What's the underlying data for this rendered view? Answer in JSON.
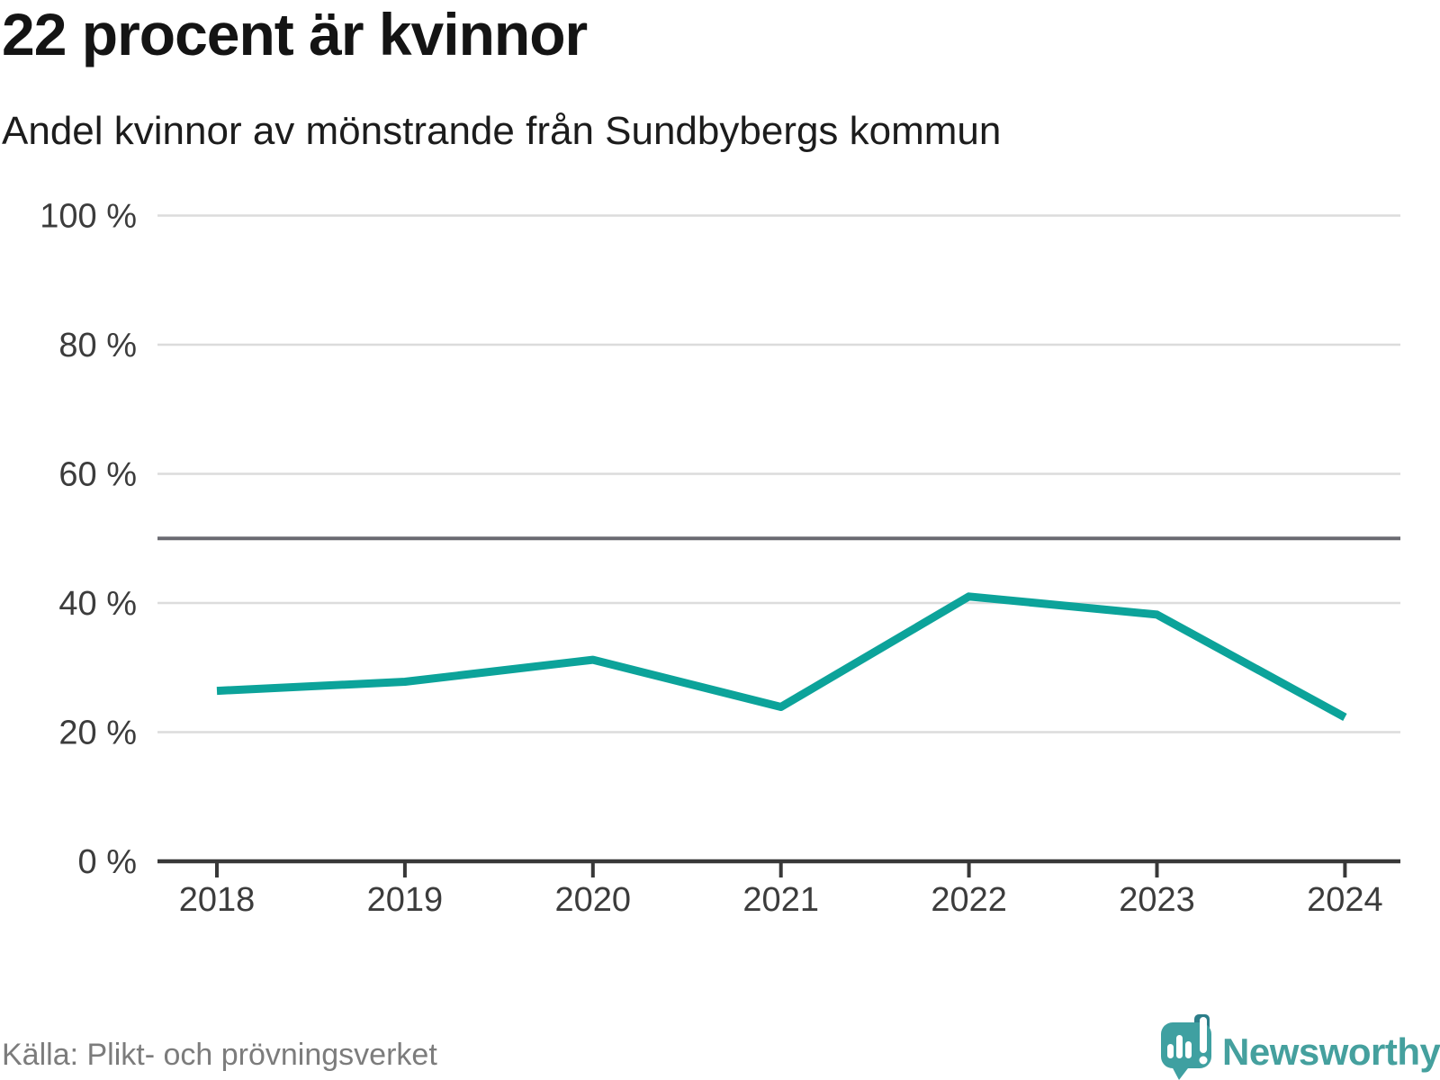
{
  "header": {
    "title": "22 procent är kvinnor",
    "subtitle": "Andel kvinnor av mönstrande från Sundbybergs kommun"
  },
  "chart_data": {
    "type": "line",
    "title": "22 procent är kvinnor",
    "subtitle": "Andel kvinnor av mönstrande från Sundbybergs kommun",
    "categories": [
      "2018",
      "2019",
      "2020",
      "2021",
      "2022",
      "2023",
      "2024"
    ],
    "series": [
      {
        "name": "Andel kvinnor av mönstrande",
        "color": "#0ca39a",
        "values": [
          26.4,
          27.8,
          31.2,
          23.9,
          41.0,
          38.2,
          22.3
        ]
      }
    ],
    "xlabel": "",
    "ylabel": "",
    "ylim": [
      0,
      100
    ],
    "yticks": [
      {
        "value": 100,
        "label": "100 %"
      },
      {
        "value": 80,
        "label": "80 %"
      },
      {
        "value": 60,
        "label": "60 %"
      },
      {
        "value": 40,
        "label": "40 %"
      },
      {
        "value": 20,
        "label": "20 %"
      },
      {
        "value": 0,
        "label": "0 %"
      }
    ],
    "reference_line": {
      "value": 50,
      "color": "#6a6a71"
    },
    "grid": true,
    "grid_color": "#dcdcdc",
    "axis_color": "#383838",
    "label_color": "#3c3c3c",
    "legend_position": "none"
  },
  "footer": {
    "source": "Källa: Plikt- och prövningsverket",
    "brand": {
      "name": "Newsworthy",
      "text_color": "#45a09e",
      "bubble_color": "#3fa0a1",
      "fold_color": "#2c7e89"
    }
  }
}
